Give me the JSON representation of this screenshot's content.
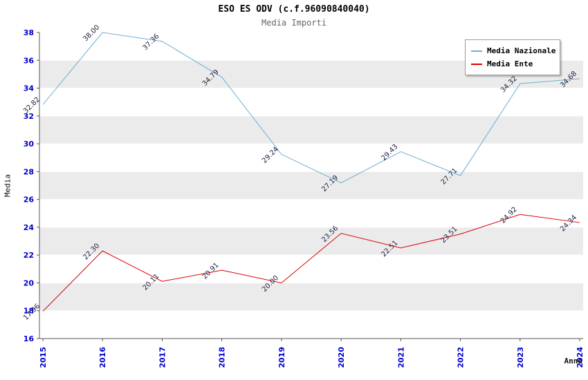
{
  "chart_data": {
    "type": "line",
    "title": "ESO ES ODV (c.f.96090840040)",
    "subtitle": "Media Importi",
    "xlabel": "Anno",
    "ylabel": "Media",
    "ylim": [
      16,
      38
    ],
    "ytick_step": 2,
    "grid": true,
    "legend_position": "top-right",
    "categories": [
      "2015",
      "2016",
      "2017",
      "2018",
      "2019",
      "2020",
      "2021",
      "2022",
      "2023",
      "2024"
    ],
    "series": [
      {
        "name": "Media Nazionale",
        "color": "#6baed6",
        "values": [
          32.82,
          38.0,
          37.36,
          34.79,
          29.24,
          27.19,
          29.43,
          27.71,
          34.32,
          34.68
        ]
      },
      {
        "name": "Media Ente",
        "color": "#dd0000",
        "values": [
          17.96,
          22.3,
          20.11,
          20.91,
          20.0,
          23.56,
          22.51,
          23.51,
          24.92,
          24.34
        ]
      }
    ],
    "colors": {
      "band_gray": "#ebebeb",
      "grid_line": "#ffffff",
      "axis": "#555555",
      "tick_label": "#0000cc",
      "point_label": "#222244"
    }
  }
}
